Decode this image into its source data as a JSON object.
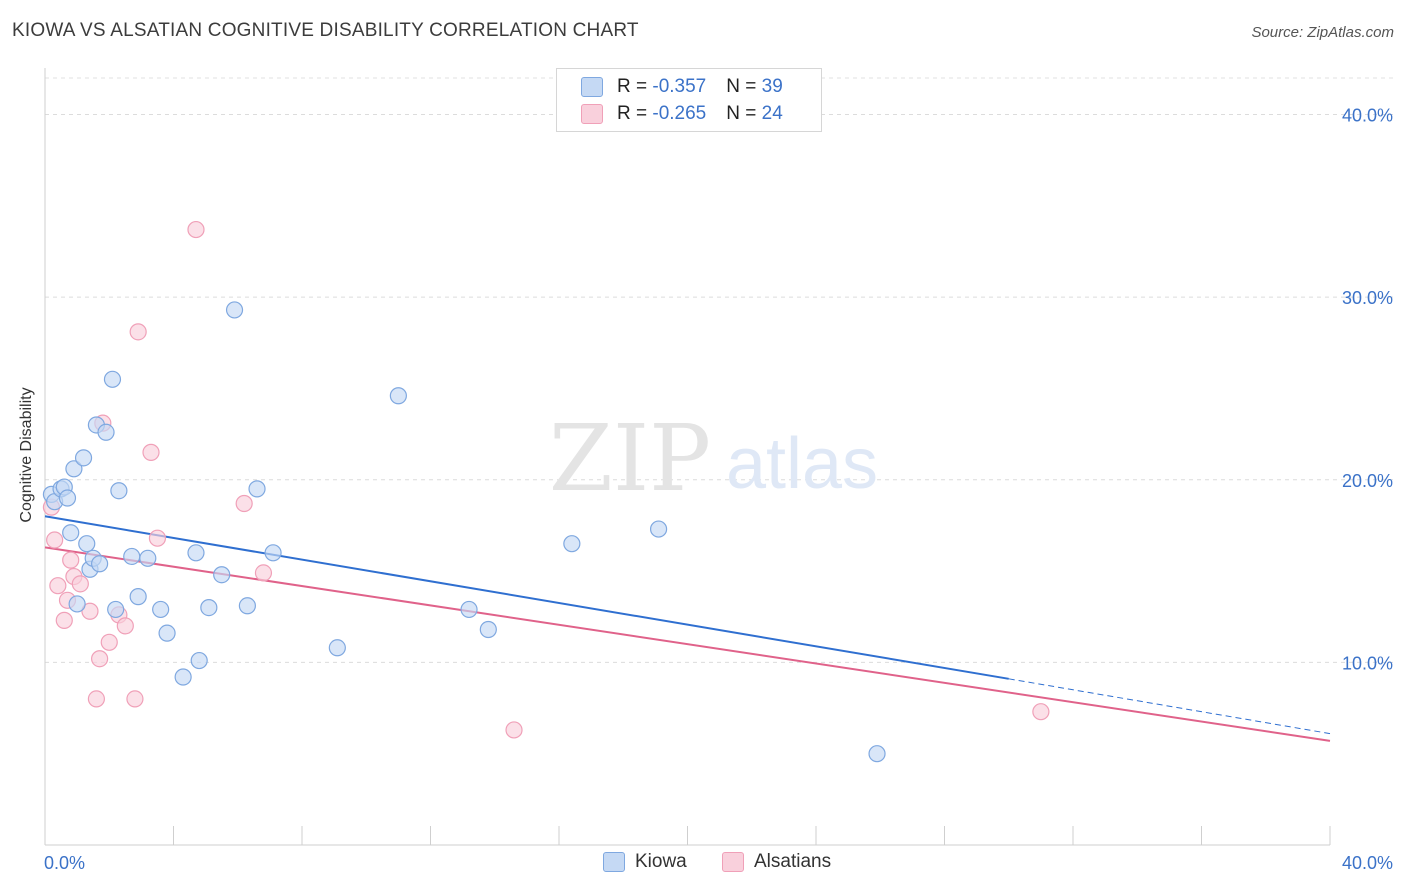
{
  "chart_data": {
    "type": "scatter",
    "title": "KIOWA VS ALSATIAN COGNITIVE DISABILITY CORRELATION CHART",
    "source": "Source: ZipAtlas.com",
    "xlabel": "",
    "ylabel": "Cognitive Disability",
    "xlim": [
      0,
      40
    ],
    "ylim": [
      0,
      42
    ],
    "x_tick_labels": [
      "0.0%",
      "40.0%"
    ],
    "y_ticks": [
      10,
      20,
      30,
      40
    ],
    "y_tick_labels": [
      "10.0%",
      "20.0%",
      "30.0%",
      "40.0%"
    ],
    "watermark": {
      "zip": "ZIP",
      "atlas": "atlas"
    },
    "series": [
      {
        "name": "Kiowa",
        "color": "#7fa8e0",
        "fill": "#c5d9f4",
        "line_color": "#2f6fd0",
        "R": "-0.357",
        "N": "39",
        "trend": {
          "x0": 0,
          "y0": 18.0,
          "x1": 30.0,
          "y1": 9.1,
          "dash_x1": 40.0,
          "dash_y1": 6.1
        },
        "points": [
          [
            0.2,
            19.2
          ],
          [
            0.3,
            18.8
          ],
          [
            0.5,
            19.5
          ],
          [
            0.6,
            19.6
          ],
          [
            0.7,
            19.0
          ],
          [
            0.8,
            17.1
          ],
          [
            0.9,
            20.6
          ],
          [
            1.0,
            13.2
          ],
          [
            1.2,
            21.2
          ],
          [
            1.3,
            16.5
          ],
          [
            1.4,
            15.1
          ],
          [
            1.5,
            15.7
          ],
          [
            1.6,
            23.0
          ],
          [
            1.7,
            15.4
          ],
          [
            1.9,
            22.6
          ],
          [
            2.1,
            25.5
          ],
          [
            2.2,
            12.9
          ],
          [
            2.3,
            19.4
          ],
          [
            2.7,
            15.8
          ],
          [
            2.9,
            13.6
          ],
          [
            3.2,
            15.7
          ],
          [
            3.6,
            12.9
          ],
          [
            3.8,
            11.6
          ],
          [
            4.3,
            9.2
          ],
          [
            4.7,
            16.0
          ],
          [
            4.8,
            10.1
          ],
          [
            5.1,
            13.0
          ],
          [
            5.5,
            14.8
          ],
          [
            5.9,
            29.3
          ],
          [
            6.3,
            13.1
          ],
          [
            6.6,
            19.5
          ],
          [
            7.1,
            16.0
          ],
          [
            9.1,
            10.8
          ],
          [
            11.0,
            24.6
          ],
          [
            13.2,
            12.9
          ],
          [
            13.8,
            11.8
          ],
          [
            16.4,
            16.5
          ],
          [
            19.1,
            17.3
          ],
          [
            25.9,
            5.0
          ]
        ]
      },
      {
        "name": "Alsatians",
        "color": "#f0a0b8",
        "fill": "#f9d0dc",
        "line_color": "#e0628a",
        "R": "-0.265",
        "N": "24",
        "trend": {
          "x0": 0,
          "y0": 16.3,
          "x1": 40.0,
          "y1": 5.7
        },
        "points": [
          [
            0.2,
            18.5
          ],
          [
            0.3,
            16.7
          ],
          [
            0.4,
            14.2
          ],
          [
            0.6,
            12.3
          ],
          [
            0.7,
            13.4
          ],
          [
            0.8,
            15.6
          ],
          [
            0.9,
            14.7
          ],
          [
            1.1,
            14.3
          ],
          [
            1.4,
            12.8
          ],
          [
            1.6,
            8.0
          ],
          [
            1.7,
            10.2
          ],
          [
            1.8,
            23.1
          ],
          [
            2.0,
            11.1
          ],
          [
            2.3,
            12.6
          ],
          [
            2.5,
            12.0
          ],
          [
            2.8,
            8.0
          ],
          [
            2.9,
            28.1
          ],
          [
            3.3,
            21.5
          ],
          [
            3.5,
            16.8
          ],
          [
            4.7,
            33.7
          ],
          [
            6.2,
            18.7
          ],
          [
            6.8,
            14.9
          ],
          [
            14.6,
            6.3
          ],
          [
            31.0,
            7.3
          ]
        ]
      }
    ]
  }
}
